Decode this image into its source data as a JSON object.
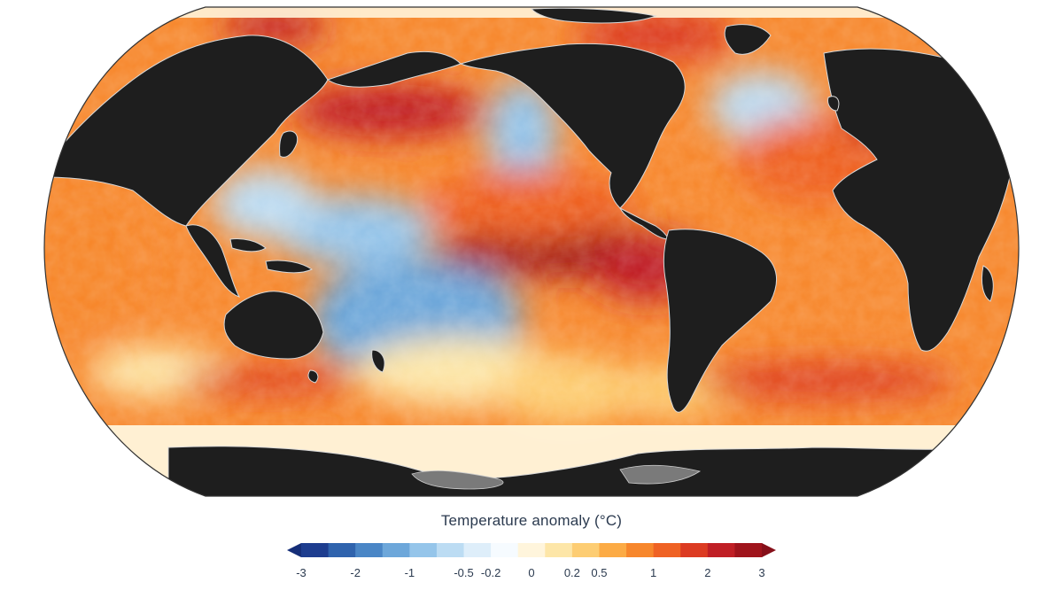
{
  "map": {
    "projection": "robinson",
    "center": "pacific",
    "land_color": "#1e1e1e",
    "ice_color": "#7a7a7a",
    "coastline_color": "#d9d9d9"
  },
  "legend": {
    "title": "Temperature anomaly (°C)",
    "colors": [
      "#1d3d8f",
      "#2f63ad",
      "#4a86c6",
      "#6da7da",
      "#95c5ea",
      "#bcdcf3",
      "#deeefa",
      "#f6fbff",
      "#fff5dc",
      "#fde6a8",
      "#fdcd73",
      "#fcab45",
      "#f7872c",
      "#ef6224",
      "#dc3b22",
      "#c01f25",
      "#a0141c"
    ],
    "under_color": "#152e78",
    "over_color": "#86101a",
    "tick_labels": [
      "-3",
      "-2",
      "-1",
      "-0.5",
      "-0.2",
      "0",
      "0.2",
      "0.5",
      "1",
      "2",
      "3"
    ]
  }
}
